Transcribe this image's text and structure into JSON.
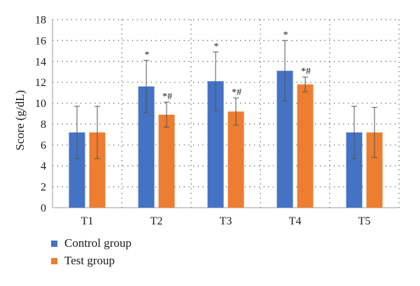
{
  "chart_data": {
    "type": "bar",
    "title": "",
    "xlabel": "",
    "ylabel": "Score (g/dL)",
    "ylim": [
      0,
      18
    ],
    "yticks": [
      0,
      2,
      4,
      6,
      8,
      10,
      12,
      14,
      16,
      18
    ],
    "grid": "dotted",
    "legend_position": "bottom-left",
    "categories": [
      "T1",
      "T2",
      "T3",
      "T4",
      "T5"
    ],
    "series": [
      {
        "name": "Control group",
        "color": "#4472c4",
        "values": [
          7.2,
          11.6,
          12.1,
          13.1,
          7.2
        ],
        "error": [
          2.5,
          2.5,
          2.8,
          2.9,
          2.5
        ],
        "annotations": [
          "",
          "*",
          "*",
          "*",
          ""
        ]
      },
      {
        "name": "Test group",
        "color": "#ed7d31",
        "values": [
          7.2,
          8.9,
          9.2,
          11.8,
          7.2
        ],
        "error": [
          2.5,
          1.2,
          1.3,
          0.7,
          2.4
        ],
        "annotations": [
          "",
          "*#",
          "*#",
          "*#",
          ""
        ]
      }
    ]
  }
}
